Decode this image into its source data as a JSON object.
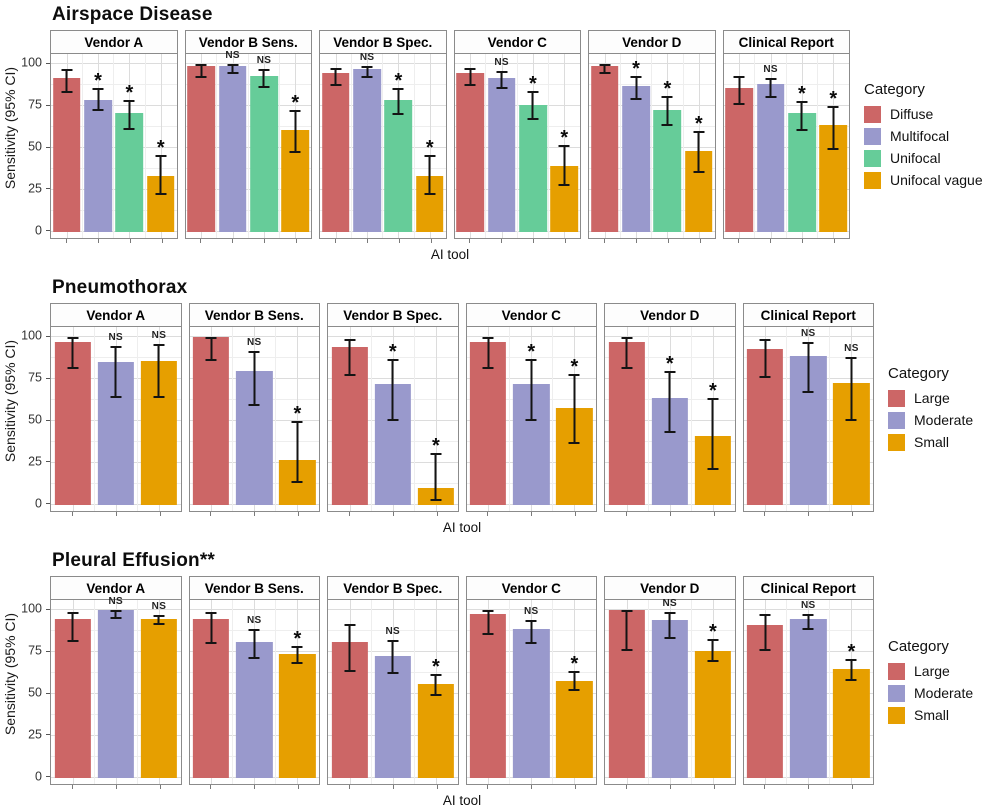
{
  "chart_data": [
    {
      "type": "bar",
      "title": "Airspace Disease",
      "xlabel": "AI tool",
      "ylabel": "Sensitivity (95% CI)",
      "legend_title": "Category",
      "legend_position": "right",
      "ylim": [
        0,
        100
      ],
      "y_ticks": [
        0,
        25,
        50,
        75,
        100
      ],
      "grid": true,
      "categories": [
        "Diffuse",
        "Multifocal",
        "Unifocal",
        "Unifocal vague"
      ],
      "colors": [
        "#CC6666",
        "#9999CC",
        "#66CC99",
        "#E69F00"
      ],
      "facets": [
        {
          "label": "Vendor A",
          "bars": [
            {
              "category": "Diffuse",
              "value": 92,
              "ci": [
                83,
                97
              ],
              "sig": ""
            },
            {
              "category": "Multifocal",
              "value": 79,
              "ci": [
                72,
                86
              ],
              "sig": "*"
            },
            {
              "category": "Unifocal",
              "value": 71,
              "ci": [
                61,
                79
              ],
              "sig": "*"
            },
            {
              "category": "Unifocal vague",
              "value": 33,
              "ci": [
                22,
                46
              ],
              "sig": "*"
            }
          ]
        },
        {
          "label": "Vendor B Sens.",
          "bars": [
            {
              "category": "Diffuse",
              "value": 99,
              "ci": [
                92,
                100
              ],
              "sig": ""
            },
            {
              "category": "Multifocal",
              "value": 99,
              "ci": [
                94,
                100
              ],
              "sig": "NS"
            },
            {
              "category": "Unifocal",
              "value": 93,
              "ci": [
                86,
                97
              ],
              "sig": "NS"
            },
            {
              "category": "Unifocal vague",
              "value": 61,
              "ci": [
                47,
                73
              ],
              "sig": "*"
            }
          ]
        },
        {
          "label": "Vendor B Spec.",
          "bars": [
            {
              "category": "Diffuse",
              "value": 95,
              "ci": [
                87,
                98
              ],
              "sig": ""
            },
            {
              "category": "Multifocal",
              "value": 97,
              "ci": [
                92,
                99
              ],
              "sig": "NS"
            },
            {
              "category": "Unifocal",
              "value": 79,
              "ci": [
                70,
                86
              ],
              "sig": "*"
            },
            {
              "category": "Unifocal vague",
              "value": 33,
              "ci": [
                22,
                46
              ],
              "sig": "*"
            }
          ]
        },
        {
          "label": "Vendor C",
          "bars": [
            {
              "category": "Diffuse",
              "value": 95,
              "ci": [
                87,
                98
              ],
              "sig": ""
            },
            {
              "category": "Multifocal",
              "value": 92,
              "ci": [
                85,
                96
              ],
              "sig": "NS"
            },
            {
              "category": "Unifocal",
              "value": 76,
              "ci": [
                67,
                84
              ],
              "sig": "*"
            },
            {
              "category": "Unifocal vague",
              "value": 39,
              "ci": [
                27,
                52
              ],
              "sig": "*"
            }
          ]
        },
        {
          "label": "Vendor D",
          "bars": [
            {
              "category": "Diffuse",
              "value": 99,
              "ci": [
                94,
                100
              ],
              "sig": ""
            },
            {
              "category": "Multifocal",
              "value": 87,
              "ci": [
                79,
                93
              ],
              "sig": "*"
            },
            {
              "category": "Unifocal",
              "value": 73,
              "ci": [
                63,
                81
              ],
              "sig": "*"
            },
            {
              "category": "Unifocal vague",
              "value": 48,
              "ci": [
                35,
                60
              ],
              "sig": "*"
            }
          ]
        },
        {
          "label": "Clinical Report",
          "bars": [
            {
              "category": "Diffuse",
              "value": 86,
              "ci": [
                76,
                93
              ],
              "sig": ""
            },
            {
              "category": "Multifocal",
              "value": 88,
              "ci": [
                80,
                92
              ],
              "sig": "NS"
            },
            {
              "category": "Unifocal",
              "value": 71,
              "ci": [
                60,
                78
              ],
              "sig": "*"
            },
            {
              "category": "Unifocal vague",
              "value": 64,
              "ci": [
                49,
                75
              ],
              "sig": "*"
            }
          ]
        }
      ]
    },
    {
      "type": "bar",
      "title": "Pneumothorax",
      "xlabel": "AI tool",
      "ylabel": "Sensitivity (95% CI)",
      "legend_title": "Category",
      "legend_position": "right",
      "ylim": [
        0,
        100
      ],
      "y_ticks": [
        0,
        25,
        50,
        75,
        100
      ],
      "grid": true,
      "categories": [
        "Large",
        "Moderate",
        "Small"
      ],
      "colors": [
        "#CC6666",
        "#9999CC",
        "#E69F00"
      ],
      "facets": [
        {
          "label": "Vendor A",
          "bars": [
            {
              "category": "Large",
              "value": 97,
              "ci": [
                81,
                100
              ],
              "sig": ""
            },
            {
              "category": "Moderate",
              "value": 85,
              "ci": [
                64,
                95
              ],
              "sig": "NS"
            },
            {
              "category": "Small",
              "value": 86,
              "ci": [
                64,
                96
              ],
              "sig": "NS"
            }
          ]
        },
        {
          "label": "Vendor B Sens.",
          "bars": [
            {
              "category": "Large",
              "value": 100,
              "ci": [
                86,
                100
              ],
              "sig": ""
            },
            {
              "category": "Moderate",
              "value": 80,
              "ci": [
                59,
                92
              ],
              "sig": "NS"
            },
            {
              "category": "Small",
              "value": 27,
              "ci": [
                13,
                50
              ],
              "sig": "*"
            }
          ]
        },
        {
          "label": "Vendor B Spec.",
          "bars": [
            {
              "category": "Large",
              "value": 94,
              "ci": [
                77,
                99
              ],
              "sig": ""
            },
            {
              "category": "Moderate",
              "value": 72,
              "ci": [
                50,
                87
              ],
              "sig": "*"
            },
            {
              "category": "Small",
              "value": 10,
              "ci": [
                2,
                31
              ],
              "sig": "*"
            }
          ]
        },
        {
          "label": "Vendor C",
          "bars": [
            {
              "category": "Large",
              "value": 97,
              "ci": [
                81,
                100
              ],
              "sig": ""
            },
            {
              "category": "Moderate",
              "value": 72,
              "ci": [
                50,
                87
              ],
              "sig": "*"
            },
            {
              "category": "Small",
              "value": 58,
              "ci": [
                36,
                78
              ],
              "sig": "*"
            }
          ]
        },
        {
          "label": "Vendor D",
          "bars": [
            {
              "category": "Large",
              "value": 97,
              "ci": [
                81,
                100
              ],
              "sig": ""
            },
            {
              "category": "Moderate",
              "value": 64,
              "ci": [
                43,
                80
              ],
              "sig": "*"
            },
            {
              "category": "Small",
              "value": 41,
              "ci": [
                21,
                64
              ],
              "sig": "*"
            }
          ]
        },
        {
          "label": "Clinical Report",
          "bars": [
            {
              "category": "Large",
              "value": 93,
              "ci": [
                76,
                99
              ],
              "sig": ""
            },
            {
              "category": "Moderate",
              "value": 89,
              "ci": [
                67,
                97
              ],
              "sig": "NS"
            },
            {
              "category": "Small",
              "value": 73,
              "ci": [
                50,
                88
              ],
              "sig": "NS"
            }
          ]
        }
      ]
    },
    {
      "type": "bar",
      "title": "Pleural Effusion**",
      "xlabel": "AI tool",
      "ylabel": "Sensitivity (95% CI)",
      "legend_title": "Category",
      "legend_position": "right",
      "ylim": [
        0,
        100
      ],
      "y_ticks": [
        0,
        25,
        50,
        75,
        100
      ],
      "grid": true,
      "categories": [
        "Large",
        "Moderate",
        "Small"
      ],
      "colors": [
        "#CC6666",
        "#9999CC",
        "#E69F00"
      ],
      "facets": [
        {
          "label": "Vendor A",
          "bars": [
            {
              "category": "Large",
              "value": 95,
              "ci": [
                81,
                99
              ],
              "sig": ""
            },
            {
              "category": "Moderate",
              "value": 100,
              "ci": [
                95,
                100
              ],
              "sig": "NS"
            },
            {
              "category": "Small",
              "value": 95,
              "ci": [
                91,
                97
              ],
              "sig": "NS"
            }
          ]
        },
        {
          "label": "Vendor B Sens.",
          "bars": [
            {
              "category": "Large",
              "value": 95,
              "ci": [
                80,
                99
              ],
              "sig": ""
            },
            {
              "category": "Moderate",
              "value": 81,
              "ci": [
                71,
                89
              ],
              "sig": "NS"
            },
            {
              "category": "Small",
              "value": 74,
              "ci": [
                68,
                79
              ],
              "sig": "*"
            }
          ]
        },
        {
          "label": "Vendor B Spec.",
          "bars": [
            {
              "category": "Large",
              "value": 81,
              "ci": [
                63,
                92
              ],
              "sig": ""
            },
            {
              "category": "Moderate",
              "value": 73,
              "ci": [
                62,
                82
              ],
              "sig": "NS"
            },
            {
              "category": "Small",
              "value": 56,
              "ci": [
                49,
                62
              ],
              "sig": "*"
            }
          ]
        },
        {
          "label": "Vendor C",
          "bars": [
            {
              "category": "Large",
              "value": 98,
              "ci": [
                85,
                100
              ],
              "sig": ""
            },
            {
              "category": "Moderate",
              "value": 89,
              "ci": [
                80,
                94
              ],
              "sig": "NS"
            },
            {
              "category": "Small",
              "value": 58,
              "ci": [
                52,
                64
              ],
              "sig": "*"
            }
          ]
        },
        {
          "label": "Vendor D",
          "bars": [
            {
              "category": "Large",
              "value": 100,
              "ci": [
                76,
                100
              ],
              "sig": ""
            },
            {
              "category": "Moderate",
              "value": 94,
              "ci": [
                83,
                99
              ],
              "sig": "NS"
            },
            {
              "category": "Small",
              "value": 76,
              "ci": [
                69,
                83
              ],
              "sig": "*"
            }
          ]
        },
        {
          "label": "Clinical Report",
          "bars": [
            {
              "category": "Large",
              "value": 91,
              "ci": [
                76,
                98
              ],
              "sig": ""
            },
            {
              "category": "Moderate",
              "value": 95,
              "ci": [
                88,
                98
              ],
              "sig": "NS"
            },
            {
              "category": "Small",
              "value": 65,
              "ci": [
                58,
                71
              ],
              "sig": "*"
            }
          ]
        }
      ]
    }
  ]
}
